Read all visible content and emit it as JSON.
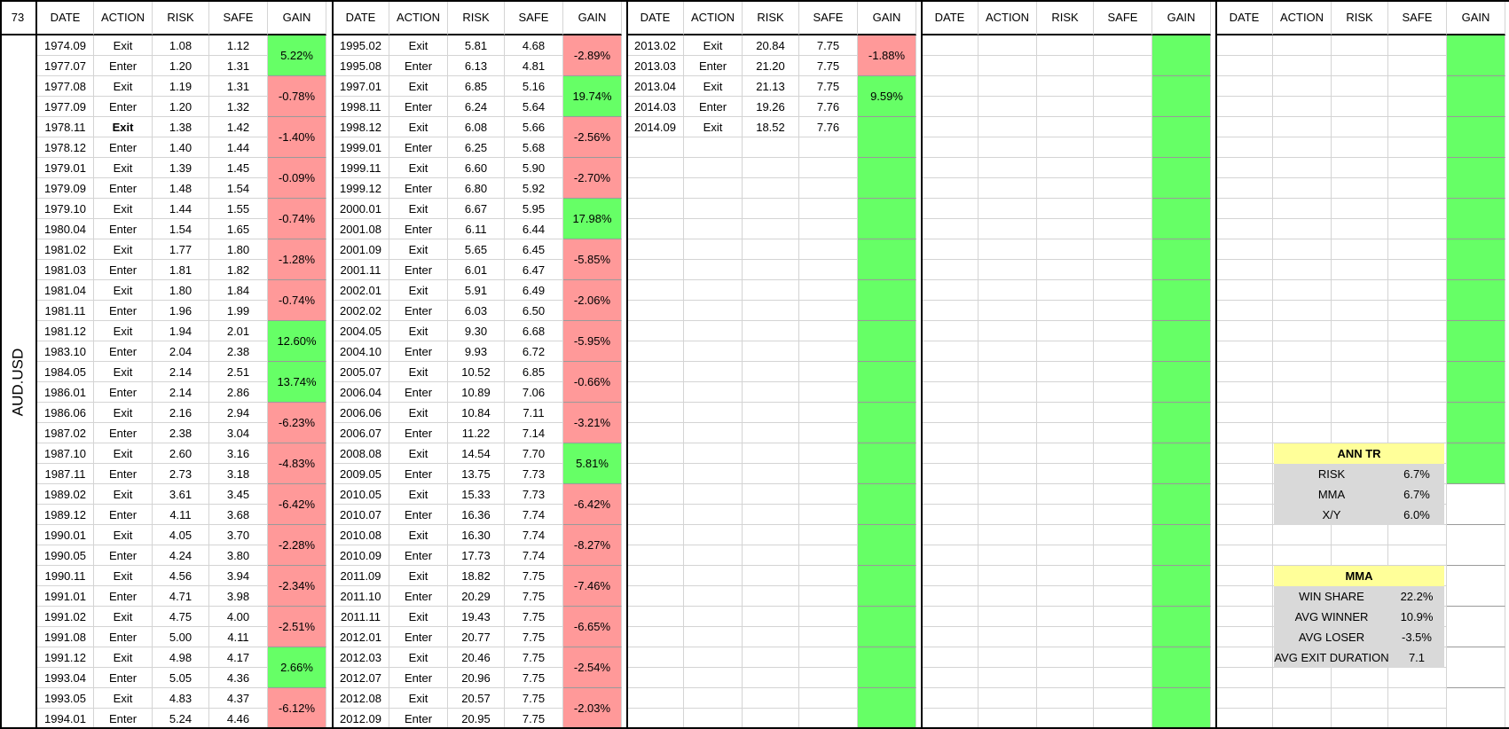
{
  "corner_value": "73",
  "pair": "AUD.USD",
  "column_headers": [
    "DATE",
    "ACTION",
    "RISK",
    "SAFE",
    "GAIN"
  ],
  "blocks": [
    {
      "rows": [
        [
          "1974.09",
          "Exit",
          "1.08",
          "1.12"
        ],
        [
          "1977.07",
          "Enter",
          "1.20",
          "1.31"
        ],
        [
          "1977.08",
          "Exit",
          "1.19",
          "1.31"
        ],
        [
          "1977.09",
          "Enter",
          "1.20",
          "1.32"
        ],
        [
          "1978.11",
          "Exit",
          "1.38",
          "1.42"
        ],
        [
          "1978.12",
          "Enter",
          "1.40",
          "1.44"
        ],
        [
          "1979.01",
          "Exit",
          "1.39",
          "1.45"
        ],
        [
          "1979.09",
          "Enter",
          "1.48",
          "1.54"
        ],
        [
          "1979.10",
          "Exit",
          "1.44",
          "1.55"
        ],
        [
          "1980.04",
          "Enter",
          "1.54",
          "1.65"
        ],
        [
          "1981.02",
          "Exit",
          "1.77",
          "1.80"
        ],
        [
          "1981.03",
          "Enter",
          "1.81",
          "1.82"
        ],
        [
          "1981.04",
          "Exit",
          "1.80",
          "1.84"
        ],
        [
          "1981.11",
          "Enter",
          "1.96",
          "1.99"
        ],
        [
          "1981.12",
          "Exit",
          "1.94",
          "2.01"
        ],
        [
          "1983.10",
          "Enter",
          "2.04",
          "2.38"
        ],
        [
          "1984.05",
          "Exit",
          "2.14",
          "2.51"
        ],
        [
          "1986.01",
          "Enter",
          "2.14",
          "2.86"
        ],
        [
          "1986.06",
          "Exit",
          "2.16",
          "2.94"
        ],
        [
          "1987.02",
          "Enter",
          "2.38",
          "3.04"
        ],
        [
          "1987.10",
          "Exit",
          "2.60",
          "3.16"
        ],
        [
          "1987.11",
          "Enter",
          "2.73",
          "3.18"
        ],
        [
          "1989.02",
          "Exit",
          "3.61",
          "3.45"
        ],
        [
          "1989.12",
          "Enter",
          "4.11",
          "3.68"
        ],
        [
          "1990.01",
          "Exit",
          "4.05",
          "3.70"
        ],
        [
          "1990.05",
          "Enter",
          "4.24",
          "3.80"
        ],
        [
          "1990.11",
          "Exit",
          "4.56",
          "3.94"
        ],
        [
          "1991.01",
          "Enter",
          "4.71",
          "3.98"
        ],
        [
          "1991.02",
          "Exit",
          "4.75",
          "4.00"
        ],
        [
          "1991.08",
          "Enter",
          "5.00",
          "4.11"
        ],
        [
          "1991.12",
          "Exit",
          "4.98",
          "4.17"
        ],
        [
          "1993.04",
          "Enter",
          "5.05",
          "4.36"
        ],
        [
          "1993.05",
          "Exit",
          "4.83",
          "4.37"
        ],
        [
          "1994.01",
          "Enter",
          "5.24",
          "4.46"
        ]
      ],
      "gains": [
        "5.22%",
        "-0.78%",
        "-1.40%",
        "-0.09%",
        "-0.74%",
        "-1.28%",
        "-0.74%",
        "12.60%",
        "13.74%",
        "-6.23%",
        "-4.83%",
        "-6.42%",
        "-2.28%",
        "-2.34%",
        "-2.51%",
        "2.66%",
        "-6.12%"
      ],
      "gain_fills": [
        "pos",
        "neg",
        "neg",
        "neg",
        "neg",
        "neg",
        "neg",
        "pos",
        "pos",
        "neg",
        "neg",
        "neg",
        "neg",
        "neg",
        "neg",
        "pos",
        "neg"
      ]
    },
    {
      "rows": [
        [
          "1995.02",
          "Exit",
          "5.81",
          "4.68"
        ],
        [
          "1995.08",
          "Enter",
          "6.13",
          "4.81"
        ],
        [
          "1997.01",
          "Exit",
          "6.85",
          "5.16"
        ],
        [
          "1998.11",
          "Enter",
          "6.24",
          "5.64"
        ],
        [
          "1998.12",
          "Exit",
          "6.08",
          "5.66"
        ],
        [
          "1999.01",
          "Enter",
          "6.25",
          "5.68"
        ],
        [
          "1999.11",
          "Exit",
          "6.60",
          "5.90"
        ],
        [
          "1999.12",
          "Enter",
          "6.80",
          "5.92"
        ],
        [
          "2000.01",
          "Exit",
          "6.67",
          "5.95"
        ],
        [
          "2001.08",
          "Enter",
          "6.11",
          "6.44"
        ],
        [
          "2001.09",
          "Exit",
          "5.65",
          "6.45"
        ],
        [
          "2001.11",
          "Enter",
          "6.01",
          "6.47"
        ],
        [
          "2002.01",
          "Exit",
          "5.91",
          "6.49"
        ],
        [
          "2002.02",
          "Enter",
          "6.03",
          "6.50"
        ],
        [
          "2004.05",
          "Exit",
          "9.30",
          "6.68"
        ],
        [
          "2004.10",
          "Enter",
          "9.93",
          "6.72"
        ],
        [
          "2005.07",
          "Exit",
          "10.52",
          "6.85"
        ],
        [
          "2006.04",
          "Enter",
          "10.89",
          "7.06"
        ],
        [
          "2006.06",
          "Exit",
          "10.84",
          "7.11"
        ],
        [
          "2006.07",
          "Enter",
          "11.22",
          "7.14"
        ],
        [
          "2008.08",
          "Exit",
          "14.54",
          "7.70"
        ],
        [
          "2009.05",
          "Enter",
          "13.75",
          "7.73"
        ],
        [
          "2010.05",
          "Exit",
          "15.33",
          "7.73"
        ],
        [
          "2010.07",
          "Enter",
          "16.36",
          "7.74"
        ],
        [
          "2010.08",
          "Exit",
          "16.30",
          "7.74"
        ],
        [
          "2010.09",
          "Enter",
          "17.73",
          "7.74"
        ],
        [
          "2011.09",
          "Exit",
          "18.82",
          "7.75"
        ],
        [
          "2011.10",
          "Enter",
          "20.29",
          "7.75"
        ],
        [
          "2011.11",
          "Exit",
          "19.43",
          "7.75"
        ],
        [
          "2012.01",
          "Enter",
          "20.77",
          "7.75"
        ],
        [
          "2012.03",
          "Exit",
          "20.46",
          "7.75"
        ],
        [
          "2012.07",
          "Enter",
          "20.96",
          "7.75"
        ],
        [
          "2012.08",
          "Exit",
          "20.57",
          "7.75"
        ],
        [
          "2012.09",
          "Enter",
          "20.95",
          "7.75"
        ]
      ],
      "gains": [
        "-2.89%",
        "19.74%",
        "-2.56%",
        "-2.70%",
        "17.98%",
        "-5.85%",
        "-2.06%",
        "-5.95%",
        "-0.66%",
        "-3.21%",
        "5.81%",
        "-6.42%",
        "-8.27%",
        "-7.46%",
        "-6.65%",
        "-2.54%",
        "-2.03%"
      ],
      "gain_fills": [
        "neg",
        "pos",
        "neg",
        "neg",
        "pos",
        "neg",
        "neg",
        "neg",
        "neg",
        "neg",
        "pos",
        "neg",
        "neg",
        "neg",
        "neg",
        "neg",
        "neg"
      ]
    },
    {
      "rows": [
        [
          "2013.02",
          "Exit",
          "20.84",
          "7.75"
        ],
        [
          "2013.03",
          "Enter",
          "21.20",
          "7.75"
        ],
        [
          "2013.04",
          "Exit",
          "21.13",
          "7.75"
        ],
        [
          "2014.03",
          "Enter",
          "19.26",
          "7.76"
        ],
        [
          "2014.09",
          "Exit",
          "18.52",
          "7.76"
        ]
      ],
      "gains": [
        "-1.88%",
        "9.59%",
        "",
        "",
        "",
        "",
        "",
        "",
        "",
        "",
        "",
        "",
        "",
        "",
        "",
        "",
        ""
      ],
      "gain_fills": [
        "neg",
        "pos",
        "pos",
        "pos",
        "pos",
        "pos",
        "pos",
        "pos",
        "pos",
        "pos",
        "pos",
        "pos",
        "pos",
        "pos",
        "pos",
        "pos",
        "pos"
      ]
    },
    {
      "rows": [],
      "gains": [
        "",
        "",
        "",
        "",
        "",
        "",
        "",
        "",
        "",
        "",
        "",
        "",
        "",
        "",
        "",
        "",
        ""
      ],
      "gain_fills": [
        "pos",
        "pos",
        "pos",
        "pos",
        "pos",
        "pos",
        "pos",
        "pos",
        "pos",
        "pos",
        "pos",
        "pos",
        "pos",
        "pos",
        "pos",
        "pos",
        "pos"
      ]
    },
    {
      "rows": [],
      "gains": [
        "",
        "",
        "",
        "",
        "",
        "",
        "",
        "",
        "",
        "",
        ""
      ],
      "gain_fills": [
        "pos",
        "pos",
        "pos",
        "pos",
        "pos",
        "pos",
        "pos",
        "pos",
        "pos",
        "pos",
        "pos"
      ]
    }
  ],
  "summary_ann_tr": {
    "title": "ANN TR",
    "rows": [
      [
        "RISK",
        "6.7%"
      ],
      [
        "MMA",
        "6.7%"
      ],
      [
        "X/Y",
        "6.0%"
      ]
    ]
  },
  "summary_mma": {
    "title": "MMA",
    "rows": [
      [
        "WIN SHARE",
        "22.2%"
      ],
      [
        "AVG WINNER",
        "10.9%"
      ],
      [
        "AVG LOSER",
        "-3.5%"
      ],
      [
        "AVG EXIT DURATION",
        "7.1"
      ]
    ]
  },
  "colors": {
    "gain_positive": "#66ff66",
    "gain_negative": "#ff9999",
    "summary_title": "#ffff99",
    "summary_body": "#d9d9d9"
  }
}
